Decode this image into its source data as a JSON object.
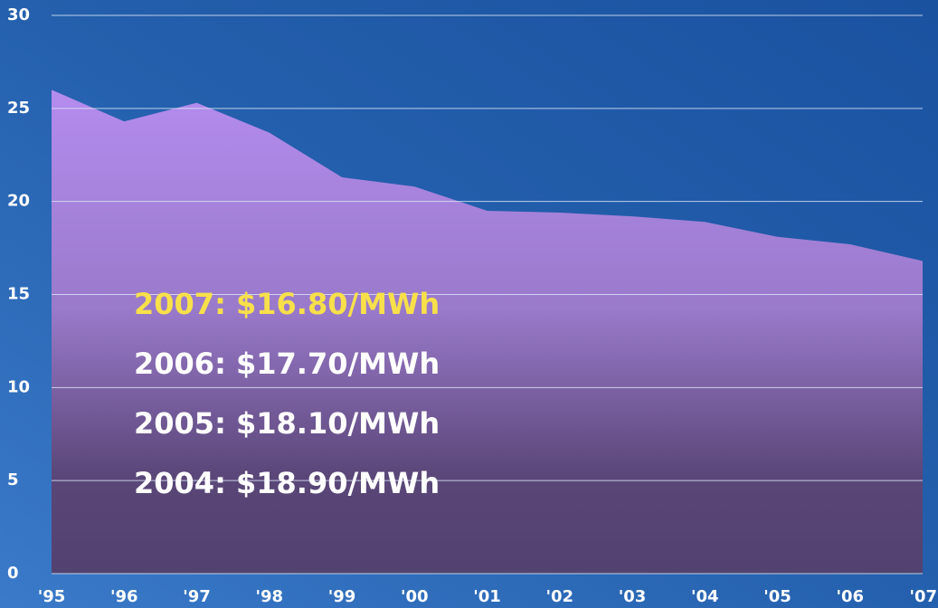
{
  "chart_data": {
    "type": "area",
    "categories": [
      "'95",
      "'96",
      "'97",
      "'98",
      "'99",
      "'00",
      "'01",
      "'02",
      "'03",
      "'04",
      "'05",
      "'06",
      "'07"
    ],
    "values": [
      26.0,
      24.3,
      25.3,
      23.7,
      21.3,
      20.8,
      19.5,
      19.4,
      19.2,
      18.9,
      18.1,
      17.7,
      16.8
    ],
    "color": "#b48cee",
    "ylim": [
      0,
      30
    ],
    "yticks": [
      0,
      5,
      10,
      15,
      20,
      25,
      30
    ],
    "grid": true,
    "annotations": [
      {
        "text": "2007: $16.80/MWh",
        "color": "#f7e04a"
      },
      {
        "text": "2006: $17.70/MWh",
        "color": "#ffffff"
      },
      {
        "text": "2005: $18.10/MWh",
        "color": "#ffffff"
      },
      {
        "text": "2004: $18.90/MWh",
        "color": "#ffffff"
      }
    ]
  }
}
